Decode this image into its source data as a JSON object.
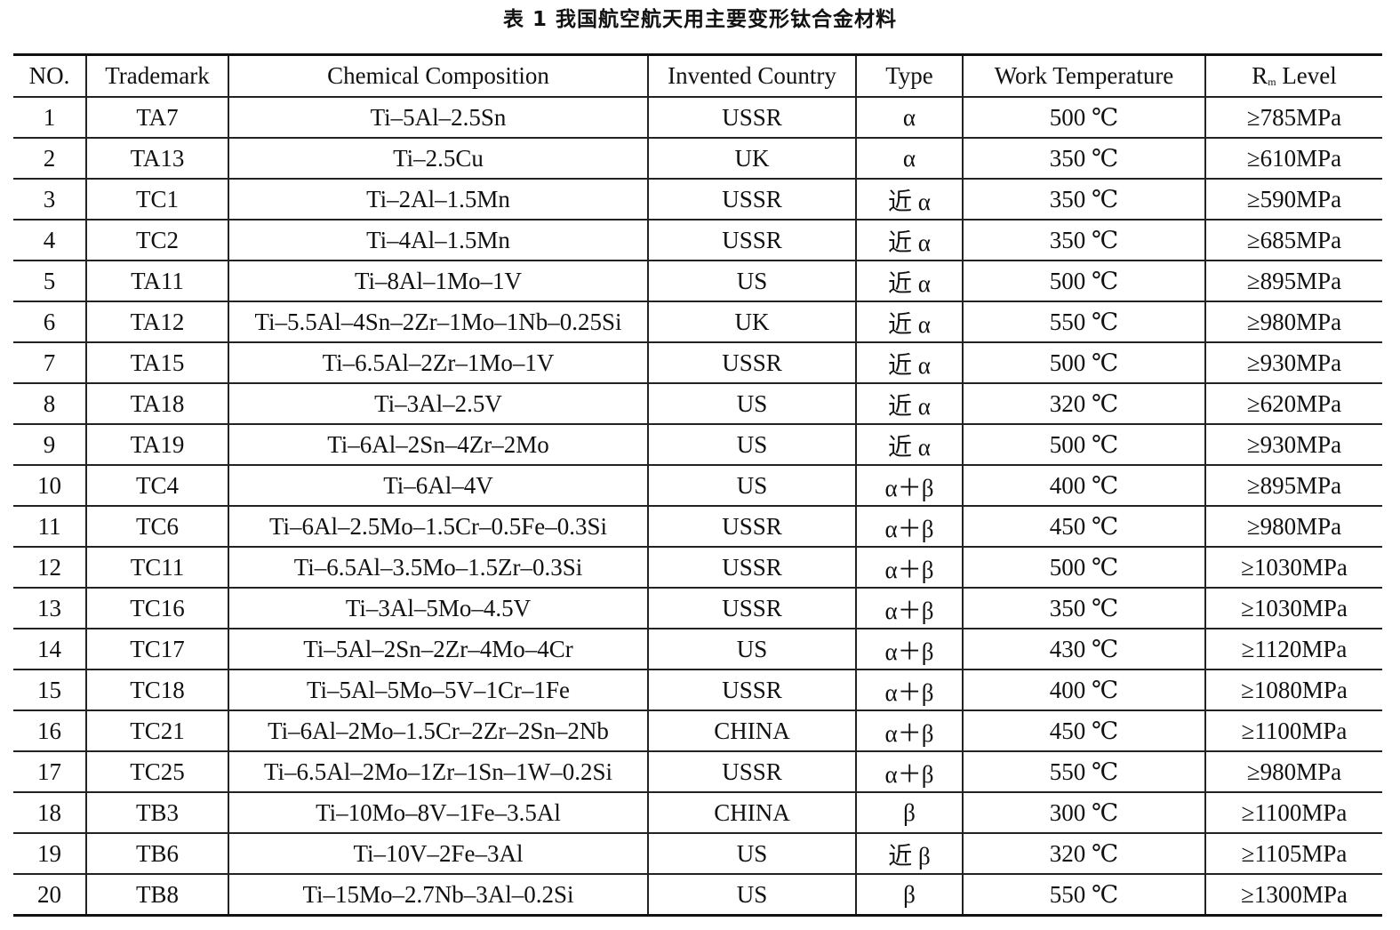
{
  "title": "表 1   我国航空航天用主要变形钛合金材料",
  "headers": {
    "no": "NO.",
    "trademark": "Trademark",
    "composition": "Chemical Composition",
    "country": "Invented Country",
    "type": "Type",
    "temp": "Work Temperature",
    "rm_r": "R",
    "rm_sub": "m",
    "rm_level": " Level"
  },
  "rows": [
    [
      "1",
      "TA7",
      "Ti–5Al–2.5Sn",
      "USSR",
      "α",
      "500 ℃",
      "≥785MPa"
    ],
    [
      "2",
      "TA13",
      "Ti–2.5Cu",
      "UK",
      "α",
      "350 ℃",
      "≥610MPa"
    ],
    [
      "3",
      "TC1",
      "Ti–2Al–1.5Mn",
      "USSR",
      "近 α",
      "350 ℃",
      "≥590MPa"
    ],
    [
      "4",
      "TC2",
      "Ti–4Al–1.5Mn",
      "USSR",
      "近 α",
      "350 ℃",
      "≥685MPa"
    ],
    [
      "5",
      "TA11",
      "Ti–8Al–1Mo–1V",
      "US",
      "近 α",
      "500 ℃",
      "≥895MPa"
    ],
    [
      "6",
      "TA12",
      "Ti–5.5Al–4Sn–2Zr–1Mo–1Nb–0.25Si",
      "UK",
      "近 α",
      "550 ℃",
      "≥980MPa"
    ],
    [
      "7",
      "TA15",
      "Ti–6.5Al–2Zr–1Mo–1V",
      "USSR",
      "近 α",
      "500 ℃",
      "≥930MPa"
    ],
    [
      "8",
      "TA18",
      "Ti–3Al–2.5V",
      "US",
      "近 α",
      "320 ℃",
      "≥620MPa"
    ],
    [
      "9",
      "TA19",
      "Ti–6Al–2Sn–4Zr–2Mo",
      "US",
      "近 α",
      "500 ℃",
      "≥930MPa"
    ],
    [
      "10",
      "TC4",
      "Ti–6Al–4V",
      "US",
      "α＋β",
      "400 ℃",
      "≥895MPa"
    ],
    [
      "11",
      "TC6",
      "Ti–6Al–2.5Mo–1.5Cr–0.5Fe–0.3Si",
      "USSR",
      "α＋β",
      "450 ℃",
      "≥980MPa"
    ],
    [
      "12",
      "TC11",
      "Ti–6.5Al–3.5Mo–1.5Zr–0.3Si",
      "USSR",
      "α＋β",
      "500 ℃",
      "≥1030MPa"
    ],
    [
      "13",
      "TC16",
      "Ti–3Al–5Mo–4.5V",
      "USSR",
      "α＋β",
      "350 ℃",
      "≥1030MPa"
    ],
    [
      "14",
      "TC17",
      "Ti–5Al–2Sn–2Zr–4Mo–4Cr",
      "US",
      "α＋β",
      "430 ℃",
      "≥1120MPa"
    ],
    [
      "15",
      "TC18",
      "Ti–5Al–5Mo–5V–1Cr–1Fe",
      "USSR",
      "α＋β",
      "400 ℃",
      "≥1080MPa"
    ],
    [
      "16",
      "TC21",
      "Ti–6Al–2Mo–1.5Cr–2Zr–2Sn–2Nb",
      "CHINA",
      "α＋β",
      "450 ℃",
      "≥1100MPa"
    ],
    [
      "17",
      "TC25",
      "Ti–6.5Al–2Mo–1Zr–1Sn–1W–0.2Si",
      "USSR",
      "α＋β",
      "550 ℃",
      "≥980MPa"
    ],
    [
      "18",
      "TB3",
      "Ti–10Mo–8V–1Fe–3.5Al",
      "CHINA",
      "β",
      "300 ℃",
      "≥1100MPa"
    ],
    [
      "19",
      "TB6",
      "Ti–10V–2Fe–3Al",
      "US",
      "近 β",
      "320 ℃",
      "≥1105MPa"
    ],
    [
      "20",
      "TB8",
      "Ti–15Mo–2.7Nb–3Al–0.2Si",
      "US",
      "β",
      "550 ℃",
      "≥1300MPa"
    ]
  ]
}
